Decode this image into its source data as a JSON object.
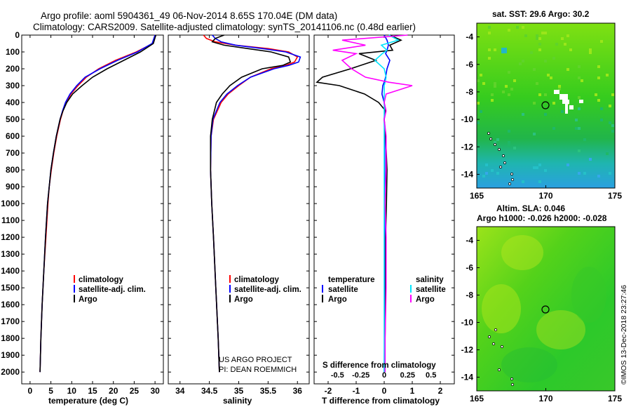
{
  "header": {
    "title_line1": "Argo profile: aoml 5904361_49 06-Nov-2014 8.65S 170.04E (DM data)",
    "title_line2": "Climatology: CARS2009. Satellite-adjusted climatology: synTS_20141106.nc (0.48d earlier)"
  },
  "map_top": {
    "title": "sat. SST: 29.6 Argo: 30.2"
  },
  "map_bottom": {
    "title_line1": "Altim. SLA: 0.046",
    "title_line2": "Argo h1000: -0.026 h2000: -0.028"
  },
  "footer": {
    "credit_line1": "US ARGO PROJECT",
    "credit_line2": "PI: DEAN ROEMMICH",
    "timestamp": "©IMOS 13-Dec-2018 23:27:46"
  },
  "colors": {
    "climatology": "#ff0000",
    "satellite": "#0000ff",
    "argo": "#000000",
    "s_diff": "#ff00ff",
    "s_sat": "#00e5ff"
  },
  "chart_data": [
    {
      "type": "line",
      "title": "",
      "xlabel": "temperature (deg C)",
      "ylabel": "",
      "xlim": [
        -2,
        32
      ],
      "ylim": [
        2070,
        0
      ],
      "x_ticks": [
        "0",
        "5",
        "10",
        "15",
        "20",
        "25",
        "30"
      ],
      "y_ticks": [
        "0",
        "100",
        "200",
        "300",
        "400",
        "500",
        "600",
        "700",
        "800",
        "900",
        "1000",
        "1100",
        "1200",
        "1300",
        "1400",
        "1500",
        "1600",
        "1700",
        "1800",
        "1900",
        "2000"
      ],
      "legend": [
        "climatology",
        "satellite-adj. clim.",
        "Argo"
      ],
      "depth": [
        0,
        50,
        100,
        150,
        200,
        250,
        300,
        350,
        400,
        450,
        500,
        600,
        700,
        800,
        900,
        1000,
        1200,
        1400,
        1600,
        1800,
        2000
      ],
      "series": [
        {
          "name": "climatology",
          "values": [
            30,
            29.5,
            25.5,
            20.5,
            16.5,
            13.5,
            11.5,
            9.8,
            8.6,
            7.9,
            7.3,
            6.4,
            5.7,
            5.1,
            4.6,
            4.3,
            3.8,
            3.3,
            2.9,
            2.6,
            2.4
          ]
        },
        {
          "name": "satellite-adj. clim.",
          "values": [
            30,
            29.3,
            25.8,
            21,
            16.8,
            13.2,
            11.2,
            9.6,
            8.5,
            7.8,
            7.2,
            6.3,
            5.6,
            5.0,
            4.6,
            4.2,
            3.7,
            3.3,
            2.9,
            2.6,
            2.4
          ]
        },
        {
          "name": "Argo",
          "values": [
            30.2,
            29.6,
            26.5,
            22.5,
            18.5,
            15,
            12.5,
            10.2,
            8.8,
            7.9,
            7.2,
            6.3,
            5.6,
            5.0,
            4.6,
            4.2,
            3.7,
            3.3,
            2.9,
            2.6,
            2.4
          ]
        }
      ]
    },
    {
      "type": "line",
      "xlabel": "salinity",
      "xlim": [
        33.8,
        36.2
      ],
      "ylim": [
        2070,
        0
      ],
      "x_ticks": [
        "34",
        "34.5",
        "35",
        "35.5",
        "36"
      ],
      "legend": [
        "climatology",
        "satellite-adj. clim.",
        "Argo"
      ],
      "depth": [
        0,
        20,
        40,
        60,
        80,
        100,
        130,
        160,
        180,
        200,
        250,
        300,
        350,
        400,
        500,
        600,
        800,
        1000,
        1200,
        1500,
        1800,
        2000
      ],
      "series": [
        {
          "name": "climatology",
          "values": [
            34.4,
            34.45,
            34.6,
            34.95,
            35.5,
            35.85,
            36.0,
            35.95,
            35.8,
            35.55,
            35.2,
            35.0,
            34.82,
            34.7,
            34.57,
            34.53,
            34.52,
            34.54,
            34.57,
            34.61,
            34.65,
            34.67
          ]
        },
        {
          "name": "satellite-adj. clim.",
          "values": [
            34.55,
            34.6,
            34.7,
            34.95,
            35.4,
            35.8,
            36.05,
            36.02,
            35.85,
            35.6,
            35.2,
            34.98,
            34.8,
            34.68,
            34.56,
            34.53,
            34.52,
            34.54,
            34.57,
            34.61,
            34.65,
            34.67
          ]
        },
        {
          "name": "Argo",
          "values": [
            34.75,
            34.6,
            34.55,
            34.75,
            35.15,
            35.55,
            35.85,
            35.88,
            35.75,
            35.4,
            35.05,
            34.85,
            34.72,
            34.62,
            34.55,
            34.52,
            34.52,
            34.54,
            34.57,
            34.61,
            34.65,
            34.67
          ]
        }
      ]
    },
    {
      "type": "line",
      "xlabel": "T difference from climatology",
      "secondary_xlabel": "S difference from climatology",
      "xlim": [
        -2.5,
        2.5
      ],
      "ylim": [
        2070,
        0
      ],
      "x_ticks": [
        "-2",
        "-1",
        "0",
        "1",
        "2"
      ],
      "secondary_x_ticks": [
        "-0.5",
        "-0.25",
        "0",
        "0.25",
        "0.5"
      ],
      "legend_left_title": "temperature",
      "legend_right_title": "salinity",
      "legend": [
        "satellite",
        "Argo",
        "satellite",
        "Argo"
      ],
      "depth": [
        0,
        30,
        60,
        90,
        110,
        150,
        200,
        250,
        280,
        300,
        350,
        400,
        450,
        500,
        600,
        800,
        1000,
        1200,
        1500,
        1800,
        2000
      ],
      "series": [
        {
          "name": "T satellite",
          "values": [
            0,
            0.1,
            0.15,
            0.1,
            0.05,
            0.2,
            0.1,
            0.05,
            0,
            -0.05,
            -0.08,
            0,
            0.02,
            0,
            0.02,
            0.02,
            0.03,
            0.03,
            0.02,
            0.01,
            0
          ]
        },
        {
          "name": "T Argo",
          "values": [
            0.2,
            0.6,
            0.2,
            0.3,
            -0.9,
            -0.3,
            -1.2,
            -2.2,
            -2.4,
            -1.6,
            -0.7,
            -0.2,
            0.05,
            0,
            0.05,
            0.1,
            0.08,
            0.05,
            0.05,
            0.03,
            0.02
          ]
        },
        {
          "name": "S satellite",
          "values": [
            0.05,
            0.15,
            -0.03,
            0.03,
            -0.02,
            -0.1,
            0,
            0.02,
            0.01,
            0,
            0,
            0,
            0,
            0,
            0,
            0,
            0,
            0,
            0,
            0,
            0
          ]
        },
        {
          "name": "S Argo",
          "values": [
            0.25,
            -0.45,
            -0.2,
            -0.55,
            -0.3,
            -0.45,
            -0.35,
            -0.2,
            0.05,
            0.3,
            0.02,
            0,
            0.02,
            0,
            0.02,
            0.02,
            0.01,
            0.02,
            0.02,
            0.01,
            0.01
          ]
        }
      ]
    },
    {
      "type": "heatmap",
      "title": "sat. SST: 29.6 Argo: 30.2",
      "x_ticks": [
        "165",
        "170",
        "175"
      ],
      "y_ticks": [
        "-4",
        "-6",
        "-8",
        "-10",
        "-12",
        "-14"
      ],
      "xlim": [
        165,
        175
      ],
      "ylim": [
        -15,
        -3
      ]
    },
    {
      "type": "heatmap",
      "title": "Altim. SLA: 0.046",
      "x_ticks": [
        "165",
        "170",
        "175"
      ],
      "y_ticks": [
        "-4",
        "-6",
        "-8",
        "-10",
        "-12",
        "-14"
      ],
      "xlim": [
        165,
        175
      ],
      "ylim": [
        -15,
        -3
      ]
    }
  ]
}
